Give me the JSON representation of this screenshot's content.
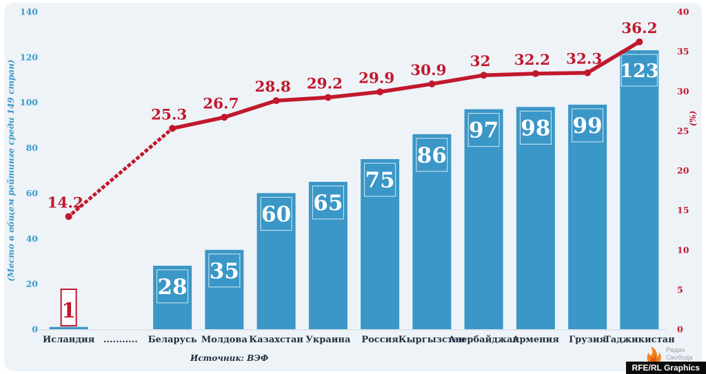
{
  "chart_data": {
    "type": "bar",
    "categories": [
      "Исландия",
      "...........",
      "Беларусь",
      "Молдова",
      "Казахстан",
      "Украина",
      "Россия",
      "Кыргызстан",
      "Азербайджан",
      "Армения",
      "Грузия",
      "Таджикистан"
    ],
    "series": [
      {
        "name": "rank-bars",
        "type": "bar",
        "values": [
          1,
          null,
          28,
          35,
          60,
          65,
          75,
          86,
          97,
          98,
          99,
          123
        ],
        "highlight_index": 0
      },
      {
        "name": "percent-line",
        "type": "line",
        "values": [
          14.2,
          null,
          25.3,
          26.7,
          28.8,
          29.2,
          29.9,
          30.9,
          32,
          32.2,
          32.3,
          36.2
        ],
        "first_segment_dotted": true
      }
    ],
    "left_axis": {
      "label": "(Место в общем рейтинге среди 149 стран)",
      "min": 0,
      "max": 140,
      "step": 20
    },
    "right_axis": {
      "label": "(%)",
      "min": 0,
      "max": 40,
      "step": 5
    },
    "grid": false,
    "legend": "none",
    "title": ""
  },
  "source_label": "Источник: ВЭФ",
  "branding": {
    "logo_icon": "radio-svoboda-torch-icon",
    "logo_text_line1": "Радио",
    "logo_text_line2": "Свобода",
    "credit_badge": "RFE/RL Graphics"
  },
  "colors": {
    "background": "#eef3f8",
    "bar": "#3b97c7",
    "bar_value_text": "#ffffff",
    "bar_value_box_border": "#d9e8f2",
    "line": "#c1182c",
    "left_axis_text": "#3b9ac9",
    "right_axis_text": "#c1182c",
    "category_text": "#22303f",
    "baseline": "#d9dfe6",
    "highlight_box_fill": "#fdfdfe",
    "badge_bg": "#0b0b0b",
    "badge_text": "#ffffff",
    "logo_orange": "#f58220",
    "logo_orange_dark": "#e05e14",
    "logo_text": "#9aa1a8"
  }
}
